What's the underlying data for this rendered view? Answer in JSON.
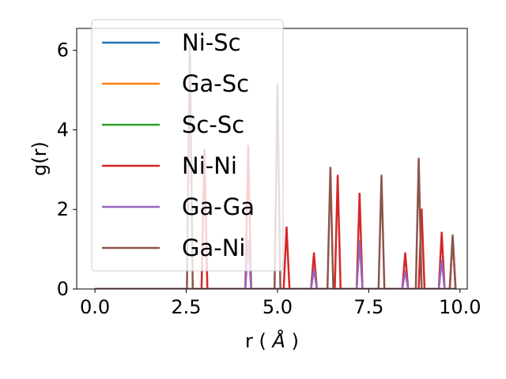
{
  "chart_data": {
    "type": "line",
    "xlabel": "r",
    "xlabel_unit": "Å",
    "ylabel": "g(r)",
    "xlim": [
      -0.5,
      10.2
    ],
    "ylim": [
      0,
      6.55
    ],
    "xticks": [
      0.0,
      2.5,
      5.0,
      7.5,
      10.0
    ],
    "xtick_labels": [
      "0.0",
      "2.5",
      "5.0",
      "7.5",
      "10.0"
    ],
    "yticks": [
      0,
      2,
      4,
      6
    ],
    "ytick_labels": [
      "0",
      "2",
      "4",
      "6"
    ],
    "grid": false,
    "legend_position": "top-left",
    "peak_width": 0.08,
    "series": [
      {
        "name": "Ni-Sc",
        "color": "#1f77b4",
        "peaks": []
      },
      {
        "name": "Ga-Sc",
        "color": "#ff7f0e",
        "peaks": []
      },
      {
        "name": "Sc-Sc",
        "color": "#2ca02c",
        "peaks": []
      },
      {
        "name": "Ni-Ni",
        "color": "#d62728",
        "peaks": [
          [
            3.0,
            3.5
          ],
          [
            4.2,
            3.6
          ],
          [
            5.25,
            1.55
          ],
          [
            6.0,
            0.9
          ],
          [
            6.65,
            2.85
          ],
          [
            7.25,
            2.4
          ],
          [
            8.5,
            0.9
          ],
          [
            8.95,
            2.0
          ],
          [
            9.5,
            1.42
          ],
          [
            9.8,
            1.3
          ]
        ]
      },
      {
        "name": "Ga-Ga",
        "color": "#9467bd",
        "peaks": [
          [
            4.2,
            1.2
          ],
          [
            6.0,
            0.5
          ],
          [
            7.25,
            1.2
          ],
          [
            8.5,
            0.45
          ],
          [
            9.5,
            0.72
          ]
        ]
      },
      {
        "name": "Ga-Ni",
        "color": "#8c564b",
        "peaks": [
          [
            2.6,
            6.2
          ],
          [
            5.0,
            5.15
          ],
          [
            6.45,
            3.05
          ],
          [
            7.85,
            2.85
          ],
          [
            8.87,
            3.28
          ],
          [
            9.8,
            1.35
          ]
        ]
      }
    ]
  }
}
